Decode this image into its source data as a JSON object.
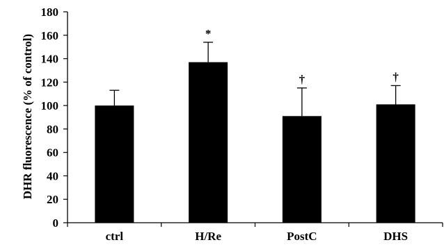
{
  "chart_data": {
    "type": "bar",
    "title": "",
    "xlabel": "",
    "ylabel": "DHR fluorescence (% of control)",
    "ylim": [
      0,
      180
    ],
    "yticks": [
      0,
      20,
      40,
      60,
      80,
      100,
      120,
      140,
      160,
      180
    ],
    "grid": false,
    "legend": "none",
    "categories": [
      "ctrl",
      "H/Re",
      "PostC",
      "DHS"
    ],
    "values": [
      100,
      137,
      91,
      101
    ],
    "error_upper": [
      13,
      17,
      24,
      16
    ],
    "significance_marks": [
      "",
      "*",
      "†",
      "†"
    ],
    "colors": {
      "bar": "#000000",
      "axis": "#000000",
      "error_bar": "#000000"
    }
  }
}
